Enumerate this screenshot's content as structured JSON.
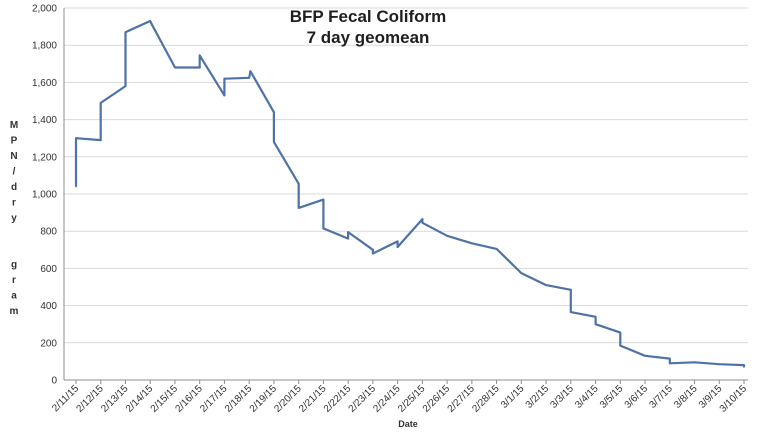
{
  "chart_data": {
    "type": "line",
    "title_line1": "BFP Fecal Coliform",
    "title_line2": "7 day geomean",
    "xlabel": "Date",
    "ylabel": "M P N / d r y   g r a m",
    "ylim": [
      0,
      2000
    ],
    "ytick_values": [
      0,
      200,
      400,
      600,
      800,
      1000,
      1200,
      1400,
      1600,
      1800,
      2000
    ],
    "ytick_labels": [
      "0",
      "200",
      "400",
      "600",
      "800",
      "1,000",
      "1,200",
      "1,400",
      "1,600",
      "1,800",
      "2,000"
    ],
    "categories": [
      "2/11/15",
      "2/12/15",
      "2/13/15",
      "2/14/15",
      "2/15/15",
      "2/16/15",
      "2/17/15",
      "2/18/15",
      "2/19/15",
      "2/20/15",
      "2/21/15",
      "2/22/15",
      "2/23/15",
      "2/24/15",
      "2/25/15",
      "2/26/15",
      "2/27/15",
      "2/28/15",
      "3/1/15",
      "3/2/15",
      "3/3/15",
      "3/4/15",
      "3/5/15",
      "3/6/15",
      "3/7/15",
      "3/8/15",
      "3/9/15",
      "3/10/15"
    ],
    "series": [
      {
        "name": "7 day geomean",
        "color": "#4f72a6",
        "x": [
          0,
          0,
          1,
          1,
          2,
          2,
          3,
          3.05,
          4,
          5,
          5,
          6,
          6,
          7,
          7.05,
          8,
          8,
          9,
          9,
          10,
          10,
          11,
          11,
          12,
          12,
          13,
          13,
          14,
          14,
          15,
          16,
          17,
          18,
          19,
          20,
          20,
          21,
          21,
          22,
          22,
          23,
          24,
          24,
          25,
          26,
          27,
          27
        ],
        "y": [
          1040,
          1300,
          1290,
          1490,
          1580,
          1870,
          1930,
          1915,
          1680,
          1680,
          1745,
          1530,
          1620,
          1625,
          1660,
          1440,
          1280,
          1055,
          925,
          970,
          815,
          760,
          795,
          700,
          680,
          745,
          715,
          865,
          845,
          775,
          735,
          705,
          575,
          510,
          485,
          365,
          340,
          300,
          255,
          185,
          130,
          115,
          90,
          95,
          85,
          80,
          70
        ]
      }
    ]
  }
}
